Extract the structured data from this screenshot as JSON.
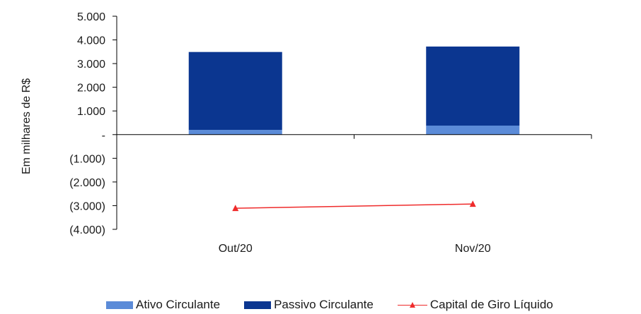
{
  "chart_data": {
    "type": "bar",
    "stacked": true,
    "categories": [
      "Out/20",
      "Nov/20"
    ],
    "series": [
      {
        "name": "Ativo Circulante",
        "kind": "bar",
        "color": "#5b8bd8",
        "values": [
          200,
          380
        ]
      },
      {
        "name": "Passivo Circulante",
        "kind": "bar",
        "color": "#0b3690",
        "values": [
          3290,
          3340
        ]
      },
      {
        "name": "Capital de Giro Líquido",
        "kind": "line",
        "marker": "triangle",
        "color": "#ef2b2b",
        "values": [
          -3110,
          -2930
        ]
      }
    ],
    "ylabel": "Em milhares de R$",
    "ylim": [
      -4000,
      5000
    ],
    "yticks": [
      5000,
      4000,
      3000,
      2000,
      1000,
      0,
      -1000,
      -2000,
      -3000,
      -4000
    ],
    "ytick_labels": [
      "5.000",
      "4.000",
      "3.000",
      "2.000",
      "1.000",
      "-",
      "(1.000)",
      "(2.000)",
      "(3.000)",
      "(4.000)"
    ],
    "grid": false,
    "legend_position": "bottom"
  }
}
